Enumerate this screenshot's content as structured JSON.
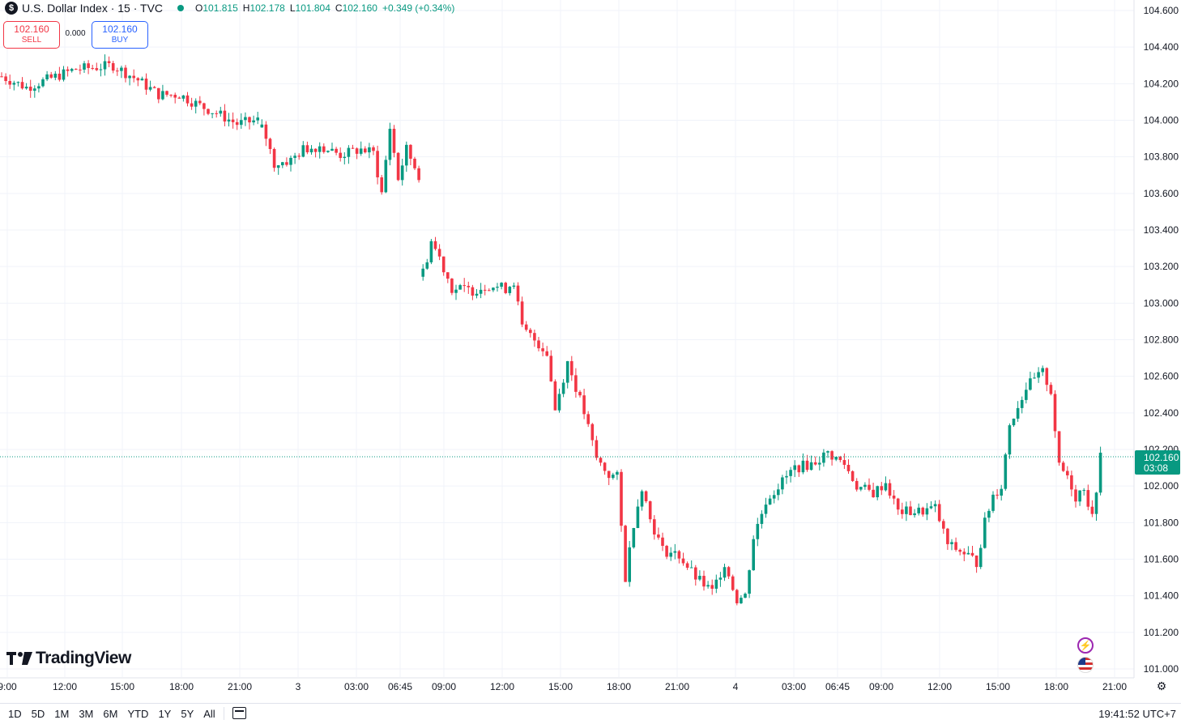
{
  "header": {
    "symbol_badge": "$",
    "title": "U.S. Dollar Index · 15 · TVC",
    "ohlc": {
      "o_label": "O",
      "o": "101.815",
      "h_label": "H",
      "h": "102.178",
      "l_label": "L",
      "l": "101.804",
      "c_label": "C",
      "c": "102.160",
      "change": "+0.349 (+0.34%)"
    }
  },
  "trade": {
    "sell_price": "102.160",
    "sell_label": "SELL",
    "spread": "0.000",
    "buy_price": "102.160",
    "buy_label": "BUY"
  },
  "branding": {
    "logo_text": "TradingView"
  },
  "bottom": {
    "ranges": [
      "1D",
      "5D",
      "1M",
      "3M",
      "6M",
      "YTD",
      "1Y",
      "5Y",
      "All"
    ],
    "clock": "19:41:52 UTC+7"
  },
  "colors": {
    "up": "#089981",
    "down": "#f23645",
    "grid": "#f0f3fa",
    "price_label": "#089981"
  },
  "chart_data": {
    "type": "candlestick",
    "ylim": [
      101.0,
      104.6
    ],
    "y_ticks": [
      "104.600",
      "104.400",
      "104.200",
      "104.000",
      "103.800",
      "103.600",
      "103.400",
      "103.200",
      "103.000",
      "102.800",
      "102.600",
      "102.400",
      "102.200",
      "102.000",
      "101.800",
      "101.600",
      "101.400",
      "101.200",
      "101.000"
    ],
    "x_ticks": [
      "9:00",
      "12:00",
      "15:00",
      "18:00",
      "21:00",
      "3",
      "03:00",
      "06:45",
      "09:00",
      "12:00",
      "15:00",
      "18:00",
      "21:00",
      "4",
      "03:00",
      "06:45",
      "09:00",
      "12:00",
      "15:00",
      "18:00",
      "21:00"
    ],
    "last_price": "102.160",
    "countdown": "03:08",
    "anchors": [
      [
        0,
        104.24
      ],
      [
        6,
        104.18
      ],
      [
        12,
        104.23
      ],
      [
        18,
        104.28
      ],
      [
        23,
        104.29
      ],
      [
        27,
        104.3
      ],
      [
        33,
        104.22
      ],
      [
        38,
        104.14
      ],
      [
        43,
        104.14
      ],
      [
        48,
        104.08
      ],
      [
        52,
        104.04
      ],
      [
        57,
        103.98
      ],
      [
        62,
        104.0
      ],
      [
        63,
        103.98
      ],
      [
        66,
        103.76
      ],
      [
        70,
        103.78
      ],
      [
        73,
        103.84
      ],
      [
        77,
        103.86
      ],
      [
        82,
        103.81
      ],
      [
        87,
        103.84
      ],
      [
        90,
        103.82
      ],
      [
        92,
        103.6
      ],
      [
        94,
        103.96
      ],
      [
        96,
        103.68
      ],
      [
        98,
        103.84
      ],
      [
        101,
        103.7
      ],
      [
        102,
        103.16
      ],
      [
        104,
        103.34
      ],
      [
        106,
        103.25
      ],
      [
        109,
        103.08
      ],
      [
        114,
        103.07
      ],
      [
        118,
        103.1
      ],
      [
        122,
        103.08
      ],
      [
        124,
        103.12
      ],
      [
        126,
        102.86
      ],
      [
        129,
        102.8
      ],
      [
        132,
        102.73
      ],
      [
        134,
        102.42
      ],
      [
        137,
        102.68
      ],
      [
        141,
        102.4
      ],
      [
        144,
        102.15
      ],
      [
        147,
        102.06
      ],
      [
        149,
        102.05
      ],
      [
        151,
        101.5
      ],
      [
        153,
        101.8
      ],
      [
        155,
        102.0
      ],
      [
        157,
        101.82
      ],
      [
        160,
        101.65
      ],
      [
        164,
        101.62
      ],
      [
        168,
        101.5
      ],
      [
        172,
        101.42
      ],
      [
        175,
        101.58
      ],
      [
        178,
        101.38
      ],
      [
        180,
        101.4
      ],
      [
        182,
        101.72
      ],
      [
        185,
        101.92
      ],
      [
        188,
        102.0
      ],
      [
        192,
        102.1
      ],
      [
        196,
        102.12
      ],
      [
        200,
        102.18
      ],
      [
        204,
        102.12
      ],
      [
        207,
        102.0
      ],
      [
        211,
        101.96
      ],
      [
        214,
        102.02
      ],
      [
        217,
        101.86
      ],
      [
        222,
        101.86
      ],
      [
        226,
        101.88
      ],
      [
        229,
        101.68
      ],
      [
        234,
        101.62
      ],
      [
        236,
        101.58
      ],
      [
        238,
        101.8
      ],
      [
        240,
        101.95
      ],
      [
        242,
        102.0
      ],
      [
        244,
        102.34
      ],
      [
        248,
        102.54
      ],
      [
        252,
        102.62
      ],
      [
        254,
        102.52
      ],
      [
        256,
        102.1
      ],
      [
        258,
        102.06
      ],
      [
        260,
        101.94
      ],
      [
        262,
        102.0
      ],
      [
        264,
        101.82
      ],
      [
        266,
        102.16
      ]
    ]
  }
}
